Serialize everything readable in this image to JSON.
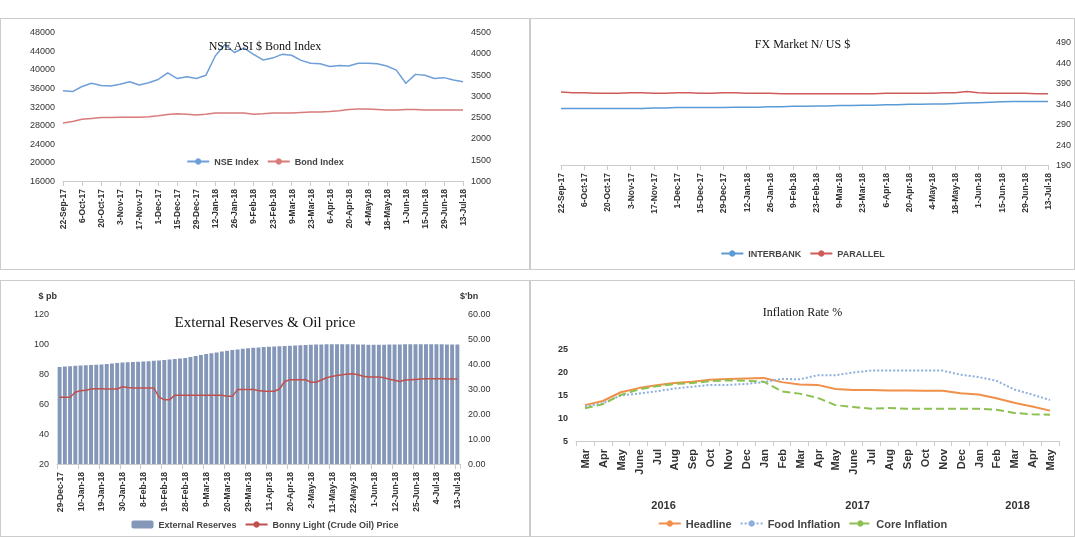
{
  "chart_data": [
    {
      "type": "line",
      "title": "NSE ASI $ Bond Index",
      "categories": [
        "22-Sep-17",
        null,
        "6-Oct-17",
        null,
        "20-Oct-17",
        null,
        "3-Nov-17",
        null,
        "17-Nov-17",
        null,
        "1-Dec-17",
        null,
        "15-Dec-17",
        null,
        "29-Dec-17",
        null,
        "12-Jan-18",
        null,
        "26-Jan-18",
        null,
        "9-Feb-18",
        null,
        "23-Feb-18",
        null,
        "9-Mar-18",
        null,
        "23-Mar-18",
        null,
        "6-Apr-18",
        null,
        "20-Apr-18",
        null,
        "4-May-18",
        null,
        "18-May-18",
        null,
        "1-Jun-18",
        null,
        "15-Jun-18",
        null,
        "29-Jun-18",
        null,
        "13-Jul-18"
      ],
      "series": [
        {
          "name": "NSE Index",
          "color": "#6f9fd8",
          "values": [
            35400,
            35200,
            36300,
            37000,
            36500,
            36400,
            36800,
            37300,
            36600,
            37100,
            37800,
            39200,
            38000,
            38400,
            38000,
            38700,
            42900,
            45300,
            43600,
            44600,
            43200,
            42000,
            42400,
            43200,
            43000,
            41900,
            41300,
            41200,
            40600,
            40800,
            40700,
            41300,
            41300,
            41200,
            40700,
            39800,
            37000,
            38900,
            38700,
            38000,
            38200,
            37700,
            37300
          ]
        },
        {
          "name": "Bond Index",
          "color": "#d97b7b",
          "axis": "y2",
          "values": [
            2360,
            2400,
            2450,
            2470,
            2490,
            2490,
            2500,
            2500,
            2500,
            2510,
            2530,
            2560,
            2580,
            2570,
            2550,
            2570,
            2600,
            2600,
            2600,
            2600,
            2570,
            2580,
            2600,
            2600,
            2600,
            2610,
            2620,
            2620,
            2630,
            2650,
            2680,
            2690,
            2690,
            2680,
            2670,
            2670,
            2680,
            2680,
            2670,
            2670,
            2670,
            2670,
            2670
          ]
        }
      ],
      "ylim": [
        16000,
        48000
      ],
      "yticks": [
        16000,
        20000,
        24000,
        28000,
        32000,
        36000,
        40000,
        44000,
        48000
      ],
      "y2lim": [
        1000,
        4500
      ],
      "y2ticks": [
        1000,
        1500,
        2000,
        2500,
        3000,
        3500,
        4000,
        4500
      ],
      "legend": "bottom",
      "marker": "none"
    },
    {
      "type": "line",
      "title": "FX Market N/ US $",
      "categories": [
        "22-Sep-17",
        null,
        "6-Oct-17",
        null,
        "20-Oct-17",
        null,
        "3-Nov-17",
        null,
        "17-Nov-17",
        null,
        "1-Dec-17",
        null,
        "15-Dec-17",
        null,
        "29-Dec-17",
        null,
        "12-Jan-18",
        null,
        "26-Jan-18",
        null,
        "9-Feb-18",
        null,
        "23-Feb-18",
        null,
        "9-Mar-18",
        null,
        "23-Mar-18",
        null,
        "6-Apr-18",
        null,
        "20-Apr-18",
        null,
        "4-May-18",
        null,
        "18-May-18",
        null,
        "1-Jun-18",
        null,
        "15-Jun-18",
        null,
        "29-Jun-18",
        null,
        "13-Jul-18"
      ],
      "series": [
        {
          "name": "INTERBANK",
          "color": "#5b9bd5",
          "values": [
            328,
            328,
            328,
            328,
            328,
            328,
            328,
            328,
            329,
            329,
            330,
            330,
            330,
            330,
            330,
            331,
            331,
            331,
            332,
            332,
            333,
            333,
            334,
            334,
            335,
            335,
            336,
            336,
            337,
            337,
            338,
            338,
            339,
            339,
            340,
            341,
            342,
            343,
            344,
            345,
            345,
            345,
            345
          ]
        },
        {
          "name": "PARALLEL",
          "color": "#cf5b5b",
          "values": [
            368,
            366,
            366,
            365,
            365,
            365,
            366,
            366,
            365,
            365,
            366,
            366,
            365,
            365,
            366,
            366,
            365,
            365,
            365,
            364,
            364,
            364,
            364,
            364,
            364,
            364,
            364,
            364,
            365,
            365,
            365,
            365,
            365,
            366,
            366,
            369,
            366,
            365,
            365,
            365,
            365,
            364,
            364
          ]
        }
      ],
      "ylim": [
        190,
        490
      ],
      "yticks": [
        190,
        240,
        290,
        340,
        390,
        440,
        490
      ],
      "legend": "bottom",
      "marker": "none"
    },
    {
      "type": "bar",
      "title": "External Reserves & Oil price",
      "ylabel": "$ pb",
      "y2label": "$'bn",
      "categories": [
        "29-Dec-17",
        null,
        null,
        null,
        "10-Jan-18",
        null,
        null,
        null,
        "19-Jan-18",
        null,
        null,
        null,
        "30-Jan-18",
        null,
        null,
        null,
        "8-Feb-18",
        null,
        null,
        null,
        "19-Feb-18",
        null,
        null,
        null,
        "28-Feb-18",
        null,
        null,
        null,
        "9-Mar-18",
        null,
        null,
        null,
        "20-Mar-18",
        null,
        null,
        null,
        "29-Mar-18",
        null,
        null,
        null,
        "11-Apr-18",
        null,
        null,
        null,
        "20-Apr-18",
        null,
        null,
        null,
        "2-May-18",
        null,
        null,
        null,
        "11-May-18",
        null,
        null,
        null,
        "22-May-18",
        null,
        null,
        null,
        "1-Jun-18",
        null,
        null,
        null,
        "12-Jun-18",
        null,
        null,
        null,
        "25-Jun-18",
        null,
        null,
        null,
        "4-Jul-18",
        null,
        null,
        null,
        "13-Jul-18"
      ],
      "series": [
        {
          "name": "External Reserves",
          "type": "bar",
          "axis": "y2",
          "color": "#8497b8",
          "values": [
            38.8,
            39.0,
            39.1,
            39.3,
            39.4,
            39.5,
            39.6,
            39.7,
            39.8,
            40.0,
            40.2,
            40.4,
            40.6,
            40.7,
            40.8,
            40.9,
            41.0,
            41.1,
            41.3,
            41.4,
            41.6,
            41.8,
            42.0,
            42.2,
            42.4,
            42.8,
            43.2,
            43.6,
            44.0,
            44.3,
            44.6,
            45.0,
            45.3,
            45.6,
            45.8,
            46.1,
            46.3,
            46.5,
            46.6,
            46.8,
            46.9,
            47.0,
            47.1,
            47.2,
            47.3,
            47.4,
            47.5,
            47.6,
            47.7,
            47.8,
            47.8,
            47.9,
            47.9,
            47.9,
            47.9,
            47.9,
            47.9,
            47.8,
            47.8,
            47.7,
            47.7,
            47.7,
            47.7,
            47.8,
            47.8,
            47.8,
            47.9,
            47.9,
            47.9,
            47.9,
            47.9,
            47.9,
            47.9,
            47.9,
            47.8,
            47.8,
            47.8
          ]
        },
        {
          "name": "Bonny Light (Crude Oil) Price",
          "type": "line",
          "color": "#c0504d",
          "values": [
            64.5,
            64.5,
            64.5,
            67.8,
            68.9,
            69.2,
            70.0,
            70.2,
            70.2,
            70.0,
            70.0,
            70.0,
            71.5,
            71.0,
            70.7,
            70.7,
            70.7,
            70.7,
            70.7,
            64.5,
            62.9,
            62.9,
            65.8,
            65.8,
            65.8,
            65.8,
            65.8,
            65.8,
            65.8,
            65.8,
            65.8,
            65.8,
            65.1,
            65.1,
            69.6,
            69.6,
            69.6,
            69.6,
            69.0,
            68.5,
            68.5,
            68.5,
            70.0,
            75.0,
            76.2,
            76.2,
            76.2,
            76.2,
            74.5,
            74.5,
            76.0,
            77.5,
            78.4,
            79.0,
            79.5,
            80.0,
            80.2,
            79.5,
            78.5,
            78.0,
            78.0,
            78.0,
            77.5,
            76.5,
            75.8,
            75.0,
            76.0,
            76.2,
            76.4,
            76.6,
            76.8,
            76.9,
            76.9,
            76.9,
            76.6,
            76.6,
            76.6
          ]
        }
      ],
      "ylim": [
        20,
        120
      ],
      "yticks": [
        20,
        40,
        60,
        80,
        100,
        120
      ],
      "y2lim": [
        0,
        60
      ],
      "y2ticks": [
        {
          "value": 0,
          "label": "0.00"
        },
        {
          "value": 10,
          "label": "10.00"
        },
        {
          "value": 20,
          "label": "20.00"
        },
        {
          "value": 30,
          "label": "30.00"
        },
        {
          "value": 40,
          "label": "40.00"
        },
        {
          "value": 50,
          "label": "50.00"
        },
        {
          "value": 60,
          "label": "60.00"
        }
      ],
      "legend": "bottom",
      "marker": "none"
    },
    {
      "type": "line",
      "title": "Inflation Rate %",
      "categories": [
        "Mar",
        "Apr",
        "May",
        "June",
        "Jul",
        "Aug",
        "Sep",
        "Oct",
        "Nov",
        "Dec",
        "Jan",
        "Feb",
        "Mar",
        "Apr",
        "May",
        "June",
        "Jul",
        "Aug",
        "Sep",
        "Oct",
        "Nov",
        "Dec",
        "Jan",
        "Feb",
        "Mar",
        "Apr",
        "May"
      ],
      "series": [
        {
          "name": "Headline",
          "color": "#f0904a",
          "line_style": "solid",
          "values": [
            12.8,
            13.7,
            15.6,
            16.5,
            17.1,
            17.6,
            17.9,
            18.3,
            18.5,
            18.6,
            18.7,
            17.8,
            17.3,
            17.2,
            16.3,
            16.1,
            16.1,
            16.0,
            16.0,
            15.9,
            15.9,
            15.4,
            15.1,
            14.3,
            13.3,
            12.5,
            11.6
          ]
        },
        {
          "name": "Food Inflation",
          "color": "#8fb0dc",
          "line_style": "dotted",
          "values": [
            12.5,
            13.2,
            14.9,
            15.3,
            15.8,
            16.4,
            16.8,
            17.2,
            17.2,
            17.4,
            17.8,
            18.5,
            18.4,
            19.3,
            19.3,
            19.9,
            20.3,
            20.3,
            20.3,
            20.3,
            20.3,
            19.4,
            18.9,
            18.1,
            16.2,
            15.1,
            13.9
          ]
        },
        {
          "name": "Core Inflation",
          "color": "#8cc152",
          "line_style": "dashed",
          "values": [
            12.1,
            13.0,
            15.0,
            16.2,
            16.9,
            17.4,
            17.6,
            18.0,
            18.2,
            18.1,
            17.9,
            15.8,
            15.3,
            14.4,
            12.8,
            12.4,
            12.0,
            12.2,
            12.0,
            12.0,
            12.0,
            12.0,
            12.0,
            11.8,
            11.1,
            10.8,
            10.7
          ]
        }
      ],
      "ylim": [
        5,
        25
      ],
      "yticks": [
        5,
        10,
        15,
        20,
        25
      ],
      "annotations": [
        "2016",
        "2017",
        "2018"
      ],
      "legend": "bottom",
      "marker": "none"
    }
  ]
}
